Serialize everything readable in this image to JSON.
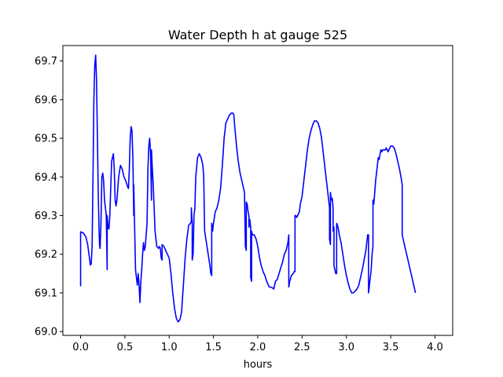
{
  "chart_data": {
    "type": "line",
    "title": "Water Depth h at gauge 525",
    "xlabel": "hours",
    "ylabel": "",
    "xlim": [
      -0.2,
      4.2
    ],
    "ylim": [
      68.99,
      69.74
    ],
    "xticks": [
      {
        "value": 0.0,
        "label": "0.0"
      },
      {
        "value": 0.5,
        "label": "0.5"
      },
      {
        "value": 1.0,
        "label": "1.0"
      },
      {
        "value": 1.5,
        "label": "1.5"
      },
      {
        "value": 2.0,
        "label": "2.0"
      },
      {
        "value": 2.5,
        "label": "2.5"
      },
      {
        "value": 3.0,
        "label": "3.0"
      },
      {
        "value": 3.5,
        "label": "3.5"
      },
      {
        "value": 4.0,
        "label": "4.0"
      }
    ],
    "yticks": [
      {
        "value": 69.0,
        "label": "69.0"
      },
      {
        "value": 69.1,
        "label": "69.1"
      },
      {
        "value": 69.2,
        "label": "69.2"
      },
      {
        "value": 69.3,
        "label": "69.3"
      },
      {
        "value": 69.4,
        "label": "69.4"
      },
      {
        "value": 69.5,
        "label": "69.5"
      },
      {
        "value": 69.6,
        "label": "69.6"
      },
      {
        "value": 69.7,
        "label": "69.7"
      }
    ],
    "grid": false,
    "series": [
      {
        "color": "#0000ff",
        "points": [
          [
            0.0,
            69.117
          ],
          [
            0.0,
            69.258
          ],
          [
            0.03,
            69.255
          ],
          [
            0.06,
            69.245
          ],
          [
            0.08,
            69.225
          ],
          [
            0.1,
            69.19
          ],
          [
            0.11,
            69.172
          ],
          [
            0.12,
            69.175
          ],
          [
            0.13,
            69.22
          ],
          [
            0.14,
            69.4
          ],
          [
            0.15,
            69.6
          ],
          [
            0.16,
            69.69
          ],
          [
            0.17,
            69.715
          ],
          [
            0.18,
            69.65
          ],
          [
            0.19,
            69.5
          ],
          [
            0.2,
            69.35
          ],
          [
            0.21,
            69.25
          ],
          [
            0.215,
            69.22
          ],
          [
            0.22,
            69.215
          ],
          [
            0.23,
            69.28
          ],
          [
            0.24,
            69.4
          ],
          [
            0.25,
            69.41
          ],
          [
            0.26,
            69.39
          ],
          [
            0.27,
            69.34
          ],
          [
            0.28,
            69.32
          ],
          [
            0.29,
            69.3
          ],
          [
            0.3,
            69.16
          ],
          [
            0.3,
            69.3
          ],
          [
            0.31,
            69.27
          ],
          [
            0.32,
            69.265
          ],
          [
            0.33,
            69.3
          ],
          [
            0.35,
            69.44
          ],
          [
            0.37,
            69.46
          ],
          [
            0.38,
            69.42
          ],
          [
            0.39,
            69.34
          ],
          [
            0.4,
            69.325
          ],
          [
            0.41,
            69.34
          ],
          [
            0.43,
            69.4
          ],
          [
            0.45,
            69.43
          ],
          [
            0.47,
            69.42
          ],
          [
            0.49,
            69.4
          ],
          [
            0.51,
            69.39
          ],
          [
            0.53,
            69.375
          ],
          [
            0.54,
            69.37
          ],
          [
            0.55,
            69.42
          ],
          [
            0.56,
            69.5
          ],
          [
            0.57,
            69.53
          ],
          [
            0.58,
            69.52
          ],
          [
            0.59,
            69.45
          ],
          [
            0.6,
            69.3
          ],
          [
            0.6,
            69.38
          ],
          [
            0.61,
            69.27
          ],
          [
            0.62,
            69.16
          ],
          [
            0.63,
            69.14
          ],
          [
            0.64,
            69.12
          ],
          [
            0.65,
            69.15
          ],
          [
            0.66,
            69.12
          ],
          [
            0.67,
            69.075
          ],
          [
            0.68,
            69.13
          ],
          [
            0.69,
            69.16
          ],
          [
            0.7,
            69.2
          ],
          [
            0.71,
            69.23
          ],
          [
            0.72,
            69.21
          ],
          [
            0.73,
            69.22
          ],
          [
            0.75,
            69.28
          ],
          [
            0.76,
            69.42
          ],
          [
            0.77,
            69.48
          ],
          [
            0.78,
            69.5
          ],
          [
            0.79,
            69.46
          ],
          [
            0.8,
            69.34
          ],
          [
            0.8,
            69.47
          ],
          [
            0.81,
            69.42
          ],
          [
            0.82,
            69.38
          ],
          [
            0.84,
            69.26
          ],
          [
            0.86,
            69.22
          ],
          [
            0.88,
            69.215
          ],
          [
            0.89,
            69.22
          ],
          [
            0.9,
            69.215
          ],
          [
            0.91,
            69.19
          ],
          [
            0.92,
            69.185
          ],
          [
            0.92,
            69.225
          ],
          [
            0.94,
            69.22
          ],
          [
            0.96,
            69.21
          ],
          [
            0.98,
            69.2
          ],
          [
            1.0,
            69.19
          ],
          [
            1.02,
            69.15
          ],
          [
            1.04,
            69.1
          ],
          [
            1.06,
            69.06
          ],
          [
            1.08,
            69.035
          ],
          [
            1.1,
            69.025
          ],
          [
            1.12,
            69.03
          ],
          [
            1.14,
            69.05
          ],
          [
            1.16,
            69.12
          ],
          [
            1.18,
            69.19
          ],
          [
            1.2,
            69.24
          ],
          [
            1.22,
            69.275
          ],
          [
            1.24,
            69.28
          ],
          [
            1.25,
            69.285
          ],
          [
            1.25,
            69.32
          ],
          [
            1.26,
            69.28
          ],
          [
            1.26,
            69.185
          ],
          [
            1.27,
            69.2
          ],
          [
            1.28,
            69.3
          ],
          [
            1.29,
            69.32
          ],
          [
            1.3,
            69.4
          ],
          [
            1.32,
            69.45
          ],
          [
            1.34,
            69.46
          ],
          [
            1.36,
            69.45
          ],
          [
            1.38,
            69.43
          ],
          [
            1.39,
            69.4
          ],
          [
            1.4,
            69.26
          ],
          [
            1.42,
            69.23
          ],
          [
            1.44,
            69.2
          ],
          [
            1.46,
            69.17
          ],
          [
            1.47,
            69.15
          ],
          [
            1.48,
            69.145
          ],
          [
            1.48,
            69.28
          ],
          [
            1.49,
            69.26
          ],
          [
            1.5,
            69.28
          ],
          [
            1.52,
            69.31
          ],
          [
            1.54,
            69.32
          ],
          [
            1.56,
            69.34
          ],
          [
            1.58,
            69.37
          ],
          [
            1.6,
            69.43
          ],
          [
            1.62,
            69.5
          ],
          [
            1.64,
            69.54
          ],
          [
            1.66,
            69.55
          ],
          [
            1.68,
            69.56
          ],
          [
            1.7,
            69.565
          ],
          [
            1.72,
            69.565
          ],
          [
            1.73,
            69.56
          ],
          [
            1.74,
            69.53
          ],
          [
            1.76,
            69.48
          ],
          [
            1.78,
            69.44
          ],
          [
            1.8,
            69.41
          ],
          [
            1.82,
            69.39
          ],
          [
            1.84,
            69.37
          ],
          [
            1.85,
            69.36
          ],
          [
            1.86,
            69.22
          ],
          [
            1.87,
            69.21
          ],
          [
            1.87,
            69.335
          ],
          [
            1.88,
            69.33
          ],
          [
            1.89,
            69.31
          ],
          [
            1.9,
            69.3
          ],
          [
            1.9,
            69.27
          ],
          [
            1.91,
            69.29
          ],
          [
            1.92,
            69.27
          ],
          [
            1.92,
            69.14
          ],
          [
            1.93,
            69.13
          ],
          [
            1.93,
            69.26
          ],
          [
            1.94,
            69.25
          ],
          [
            1.96,
            69.25
          ],
          [
            1.98,
            69.24
          ],
          [
            2.0,
            69.22
          ],
          [
            2.02,
            69.19
          ],
          [
            2.04,
            69.17
          ],
          [
            2.06,
            69.155
          ],
          [
            2.08,
            69.145
          ],
          [
            2.1,
            69.13
          ],
          [
            2.12,
            69.12
          ],
          [
            2.13,
            69.115
          ],
          [
            2.15,
            69.115
          ],
          [
            2.17,
            69.112
          ],
          [
            2.18,
            69.11
          ],
          [
            2.19,
            69.12
          ],
          [
            2.2,
            69.13
          ],
          [
            2.22,
            69.135
          ],
          [
            2.24,
            69.15
          ],
          [
            2.26,
            69.165
          ],
          [
            2.28,
            69.18
          ],
          [
            2.3,
            69.2
          ],
          [
            2.32,
            69.21
          ],
          [
            2.34,
            69.23
          ],
          [
            2.35,
            69.25
          ],
          [
            2.35,
            69.115
          ],
          [
            2.36,
            69.13
          ],
          [
            2.38,
            69.145
          ],
          [
            2.4,
            69.15
          ],
          [
            2.41,
            69.155
          ],
          [
            2.42,
            69.155
          ],
          [
            2.42,
            69.3
          ],
          [
            2.43,
            69.3
          ],
          [
            2.44,
            69.295
          ],
          [
            2.45,
            69.3
          ],
          [
            2.46,
            69.305
          ],
          [
            2.47,
            69.31
          ],
          [
            2.48,
            69.33
          ],
          [
            2.5,
            69.35
          ],
          [
            2.52,
            69.39
          ],
          [
            2.54,
            69.43
          ],
          [
            2.56,
            69.47
          ],
          [
            2.58,
            69.5
          ],
          [
            2.6,
            69.52
          ],
          [
            2.62,
            69.535
          ],
          [
            2.64,
            69.545
          ],
          [
            2.66,
            69.545
          ],
          [
            2.68,
            69.54
          ],
          [
            2.7,
            69.525
          ],
          [
            2.72,
            69.5
          ],
          [
            2.74,
            69.46
          ],
          [
            2.76,
            69.42
          ],
          [
            2.78,
            69.38
          ],
          [
            2.8,
            69.34
          ],
          [
            2.81,
            69.32
          ],
          [
            2.81,
            69.24
          ],
          [
            2.82,
            69.225
          ],
          [
            2.82,
            69.36
          ],
          [
            2.83,
            69.34
          ],
          [
            2.84,
            69.345
          ],
          [
            2.85,
            69.32
          ],
          [
            2.85,
            69.26
          ],
          [
            2.86,
            69.27
          ],
          [
            2.86,
            69.17
          ],
          [
            2.87,
            69.16
          ],
          [
            2.88,
            69.15
          ],
          [
            2.89,
            69.15
          ],
          [
            2.89,
            69.28
          ],
          [
            2.9,
            69.275
          ],
          [
            2.91,
            69.265
          ],
          [
            2.92,
            69.25
          ],
          [
            2.94,
            69.23
          ],
          [
            2.96,
            69.2
          ],
          [
            2.98,
            69.17
          ],
          [
            3.0,
            69.145
          ],
          [
            3.02,
            69.125
          ],
          [
            3.04,
            69.11
          ],
          [
            3.06,
            69.1
          ],
          [
            3.08,
            69.1
          ],
          [
            3.1,
            69.105
          ],
          [
            3.12,
            69.11
          ],
          [
            3.14,
            69.12
          ],
          [
            3.16,
            69.14
          ],
          [
            3.18,
            69.16
          ],
          [
            3.2,
            69.185
          ],
          [
            3.22,
            69.21
          ],
          [
            3.24,
            69.25
          ],
          [
            3.25,
            69.25
          ],
          [
            3.25,
            69.1
          ],
          [
            3.26,
            69.12
          ],
          [
            3.28,
            69.16
          ],
          [
            3.29,
            69.2
          ],
          [
            3.3,
            69.22
          ],
          [
            3.3,
            69.34
          ],
          [
            3.31,
            69.33
          ],
          [
            3.32,
            69.36
          ],
          [
            3.33,
            69.39
          ],
          [
            3.34,
            69.41
          ],
          [
            3.35,
            69.43
          ],
          [
            3.36,
            69.45
          ],
          [
            3.37,
            69.445
          ],
          [
            3.38,
            69.46
          ],
          [
            3.39,
            69.47
          ],
          [
            3.4,
            69.465
          ],
          [
            3.41,
            69.47
          ],
          [
            3.42,
            69.47
          ],
          [
            3.43,
            69.47
          ],
          [
            3.44,
            69.47
          ],
          [
            3.45,
            69.475
          ],
          [
            3.46,
            69.47
          ],
          [
            3.47,
            69.465
          ],
          [
            3.48,
            69.47
          ],
          [
            3.5,
            69.48
          ],
          [
            3.52,
            69.48
          ],
          [
            3.54,
            69.475
          ],
          [
            3.56,
            69.46
          ],
          [
            3.58,
            69.44
          ],
          [
            3.6,
            69.42
          ],
          [
            3.62,
            69.395
          ],
          [
            3.63,
            69.38
          ],
          [
            3.63,
            69.25
          ],
          [
            3.64,
            69.24
          ],
          [
            3.66,
            69.22
          ],
          [
            3.68,
            69.2
          ],
          [
            3.7,
            69.18
          ],
          [
            3.72,
            69.16
          ],
          [
            3.74,
            69.14
          ],
          [
            3.76,
            69.12
          ],
          [
            3.78,
            69.1
          ]
        ]
      }
    ]
  }
}
